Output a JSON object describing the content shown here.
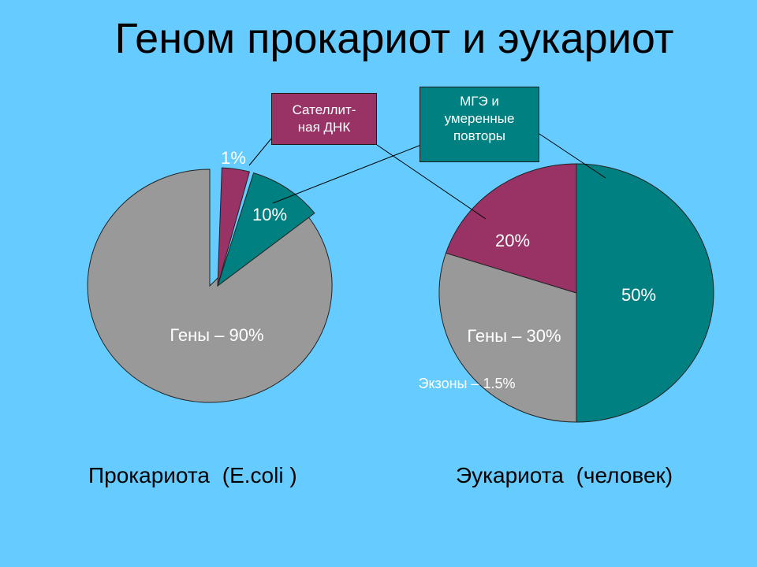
{
  "title": "Геном прокариот и эукариот",
  "callouts": {
    "satellite": "Сателлит-\nная ДНК",
    "mge": "МГЭ и\nумеренные\nповторы"
  },
  "captions": {
    "prokaryote_name": "Прокариота",
    "prokaryote_species": "(E.coli )",
    "eukaryote_name": "Эукариота",
    "eukaryote_species": "(человек)"
  },
  "colors": {
    "background": "#66ccff",
    "genes": "#999999",
    "satellite": "#993366",
    "mge": "#008080"
  },
  "chart_data": [
    {
      "type": "pie",
      "title": "",
      "slices": [
        {
          "label": "Гены – 90%",
          "value": 90,
          "color": "#999999"
        },
        {
          "label": "1%",
          "value": 1,
          "color": "#993366"
        },
        {
          "label": "10%",
          "value": 10,
          "color": "#008080"
        }
      ]
    },
    {
      "type": "pie",
      "title": "",
      "slices": [
        {
          "label": "50%",
          "value": 50,
          "color": "#008080"
        },
        {
          "label": "Гены – 30%",
          "value": 30,
          "color": "#999999"
        },
        {
          "label": "20%",
          "value": 20,
          "color": "#993366"
        }
      ],
      "annotation": "Экзоны – 1.5%"
    }
  ]
}
